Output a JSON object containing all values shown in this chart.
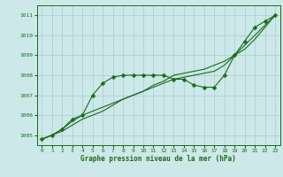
{
  "background_color": "#cce8e8",
  "grid_color": "#aacccc",
  "line_color": "#1a6b1a",
  "marker_color": "#1a6b1a",
  "xlabel": "Graphe pression niveau de la mer (hPa)",
  "xlabel_color": "#1a6b1a",
  "xlim": [
    -0.5,
    23.5
  ],
  "ylim": [
    1004.5,
    1011.5
  ],
  "yticks": [
    1005,
    1006,
    1007,
    1008,
    1009,
    1010,
    1011
  ],
  "xticks": [
    0,
    1,
    2,
    3,
    4,
    5,
    6,
    7,
    8,
    9,
    10,
    11,
    12,
    13,
    14,
    15,
    16,
    17,
    18,
    19,
    20,
    21,
    22,
    23
  ],
  "series": [
    {
      "x": [
        0,
        1,
        2,
        3,
        4,
        5,
        6,
        7,
        8,
        9,
        10,
        11,
        12,
        13,
        14,
        15,
        16,
        17,
        18,
        19,
        20,
        21,
        22,
        23
      ],
      "y": [
        1004.8,
        1005.0,
        1005.3,
        1005.8,
        1006.0,
        1007.0,
        1007.6,
        1007.9,
        1008.0,
        1008.0,
        1008.0,
        1008.0,
        1008.0,
        1007.8,
        1007.8,
        1007.5,
        1007.4,
        1007.4,
        1008.0,
        1009.0,
        1009.7,
        1010.4,
        1010.7,
        1011.0
      ],
      "markersize": 2.5,
      "linewidth": 0.8,
      "has_marker": true
    },
    {
      "x": [
        0,
        1,
        2,
        3,
        4,
        5,
        6,
        7,
        8,
        9,
        10,
        11,
        12,
        13,
        14,
        15,
        16,
        17,
        18,
        19,
        20,
        21,
        22,
        23
      ],
      "y": [
        1004.8,
        1005.0,
        1005.3,
        1005.7,
        1006.0,
        1006.2,
        1006.4,
        1006.6,
        1006.8,
        1007.0,
        1007.2,
        1007.4,
        1007.6,
        1007.8,
        1007.9,
        1008.0,
        1008.1,
        1008.2,
        1008.5,
        1009.0,
        1009.5,
        1010.0,
        1010.5,
        1011.0
      ],
      "markersize": 0,
      "linewidth": 0.8,
      "has_marker": false
    },
    {
      "x": [
        0,
        1,
        2,
        3,
        4,
        5,
        6,
        7,
        8,
        9,
        10,
        11,
        12,
        13,
        14,
        15,
        16,
        17,
        18,
        19,
        20,
        21,
        22,
        23
      ],
      "y": [
        1004.8,
        1005.0,
        1005.2,
        1005.5,
        1005.8,
        1006.0,
        1006.2,
        1006.5,
        1006.8,
        1007.0,
        1007.2,
        1007.5,
        1007.7,
        1008.0,
        1008.1,
        1008.2,
        1008.3,
        1008.5,
        1008.7,
        1009.0,
        1009.3,
        1009.8,
        1010.4,
        1011.0
      ],
      "markersize": 0,
      "linewidth": 0.8,
      "has_marker": false
    }
  ]
}
